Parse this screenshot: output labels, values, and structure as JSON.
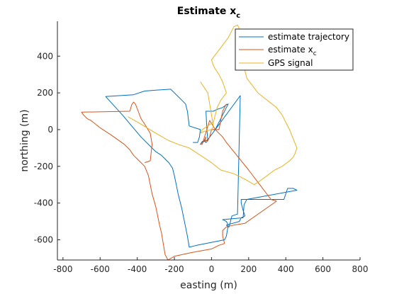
{
  "chart_data": {
    "type": "line",
    "title": "Estimate x",
    "title_subscript": "c",
    "xlabel": "easting (m)",
    "ylabel": "northing (m)",
    "xlim": [
      -830,
      800
    ],
    "ylim": [
      -710,
      590
    ],
    "xticks": [
      -800,
      -600,
      -400,
      -200,
      0,
      200,
      400,
      600,
      800
    ],
    "yticks": [
      -600,
      -400,
      -200,
      0,
      200,
      400
    ],
    "grid": false,
    "legend_position": "top-right",
    "series": [
      {
        "name": "estimate trajectory",
        "color": "#0072BD",
        "x": [
          -100,
          -75,
          -65,
          -60,
          -120,
          -125,
          -130,
          -140,
          -220,
          -300,
          -360,
          -420,
          -570,
          -480,
          -430,
          -380,
          -300,
          -270,
          -250,
          -230,
          -210,
          -200,
          -190,
          -180,
          -170,
          -160,
          -150,
          -140,
          -130,
          -120,
          -80,
          70,
          80,
          90,
          80,
          60,
          170,
          175,
          190,
          460,
          440,
          430,
          410,
          390,
          160,
          160,
          170,
          180,
          160,
          150,
          80,
          90,
          95,
          110,
          140,
          155,
          -20,
          -50,
          -60,
          -50,
          -40,
          -30,
          -20,
          -25,
          -30,
          5,
          10,
          30,
          60,
          80,
          90,
          20,
          10
        ],
        "y": [
          -70,
          -70,
          -40,
          0,
          20,
          60,
          100,
          140,
          220,
          215,
          210,
          190,
          180,
          80,
          20,
          -40,
          -120,
          -140,
          -160,
          -180,
          -210,
          -250,
          -300,
          -350,
          -390,
          -430,
          -480,
          -530,
          -580,
          -640,
          -630,
          -600,
          -580,
          -520,
          -500,
          -490,
          -480,
          -410,
          -380,
          -330,
          -320,
          -320,
          -320,
          -380,
          -380,
          -400,
          -440,
          -470,
          -480,
          -500,
          -520,
          -530,
          -530,
          -470,
          -460,
          185,
          -55,
          -70,
          -80,
          -65,
          -60,
          -70,
          -60,
          0,
          100,
          100,
          100,
          110,
          120,
          135,
          140,
          0,
          0
        ]
      },
      {
        "name": "estimate x_c",
        "color": "#D95319",
        "x": [
          -360,
          -330,
          -320,
          -330,
          -360,
          -380,
          -395,
          -410,
          -420,
          -430,
          -440,
          -700,
          -690,
          -670,
          -650,
          -600,
          -540,
          -470,
          -440,
          -420,
          -400,
          -380,
          -360,
          -340,
          -320,
          -300,
          -280,
          -270,
          -260,
          -250,
          -235,
          -200,
          -110,
          0,
          40,
          70,
          60,
          60,
          80,
          120,
          180,
          350,
          320,
          200,
          80,
          60,
          20,
          -10,
          -50,
          -60,
          -40,
          -30,
          -35,
          -20,
          -10,
          0,
          0,
          10,
          20,
          40,
          60,
          80
        ],
        "y": [
          -180,
          -170,
          -80,
          -20,
          30,
          60,
          100,
          140,
          150,
          135,
          100,
          95,
          80,
          60,
          50,
          10,
          -30,
          -80,
          -110,
          -140,
          -160,
          -180,
          -200,
          -250,
          -350,
          -420,
          -520,
          -560,
          -620,
          -680,
          -710,
          -690,
          -670,
          -650,
          -630,
          -620,
          -580,
          -550,
          -530,
          -520,
          -510,
          -390,
          -380,
          -220,
          -70,
          -40,
          0,
          50,
          -80,
          -80,
          -60,
          -40,
          -60,
          -60,
          -40,
          0,
          0,
          0,
          0,
          0,
          100,
          140
        ]
      },
      {
        "name": "GPS signal",
        "color": "#EDB120",
        "x": [
          -450,
          -380,
          -300,
          -230,
          -180,
          -120,
          -60,
          0,
          50,
          120,
          180,
          230,
          260,
          300,
          340,
          380,
          420,
          440,
          450,
          460,
          440,
          420,
          400,
          380,
          350,
          300,
          250,
          220,
          190,
          180,
          170,
          160,
          200,
          210,
          180,
          140,
          120,
          90,
          60,
          30,
          0,
          10,
          20,
          40,
          60,
          80,
          50,
          30,
          20,
          10,
          -50,
          -60,
          -40,
          0,
          10,
          -20,
          -60
        ],
        "y": [
          70,
          30,
          -20,
          -60,
          -80,
          -100,
          -140,
          -180,
          -220,
          -240,
          -270,
          -300,
          -280,
          -250,
          -220,
          -200,
          -170,
          -150,
          -130,
          -100,
          -50,
          0,
          40,
          80,
          120,
          160,
          200,
          240,
          280,
          320,
          360,
          400,
          410,
          420,
          480,
          570,
          560,
          500,
          460,
          420,
          380,
          350,
          330,
          300,
          260,
          200,
          160,
          120,
          80,
          40,
          0,
          -20,
          -10,
          0,
          20,
          200,
          260
        ]
      }
    ]
  }
}
